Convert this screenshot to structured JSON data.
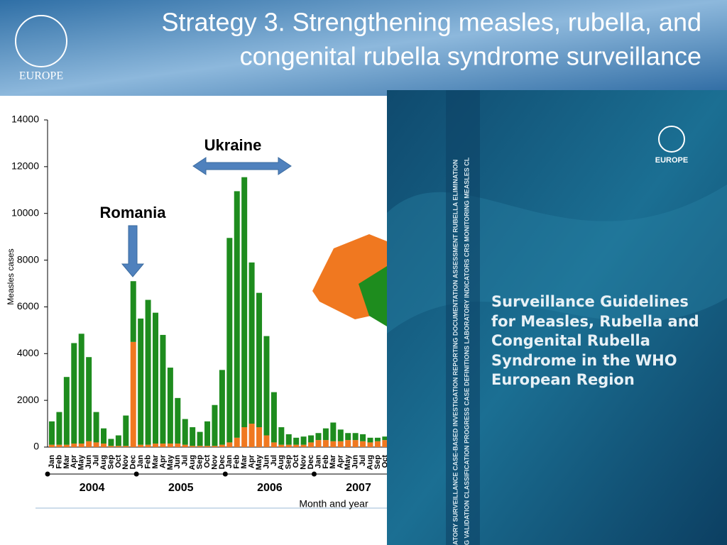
{
  "header": {
    "title_line1": "Strategy 3.  Strengthening measles, rubella, and",
    "title_line2": "congenital rubella syndrome surveillance",
    "logo_text": "EUROPE"
  },
  "chart_data": {
    "type": "stacked-bar",
    "y_label": "Measles cases",
    "x_label": "Month and year",
    "categories": [
      "Jan",
      "Feb",
      "Mar",
      "Apr",
      "May",
      "Jun",
      "Jul",
      "Aug",
      "Sep",
      "Oct",
      "Nov",
      "Dec",
      "Jan",
      "Feb",
      "Mar",
      "Apr",
      "May",
      "Jun",
      "Jul",
      "Aug",
      "Sep",
      "Oct",
      "Nov",
      "Dec",
      "Jan",
      "Feb",
      "Mar",
      "Apr",
      "May",
      "Jun",
      "Jul",
      "Aug",
      "Sep",
      "Oct",
      "Nov",
      "Dec",
      "Jan",
      "Feb",
      "Mar",
      "Apr",
      "May",
      "Jun",
      "Jul",
      "Aug",
      "Sep",
      "Oct"
    ],
    "years": [
      "2004",
      "2005",
      "2006",
      "2007"
    ],
    "series": [
      {
        "color": "#f07820",
        "values": [
          100,
          100,
          100,
          150,
          150,
          250,
          200,
          150,
          50,
          50,
          50,
          4500,
          100,
          100,
          150,
          150,
          150,
          150,
          100,
          50,
          50,
          50,
          50,
          100,
          200,
          400,
          850,
          1000,
          850,
          500,
          200,
          100,
          100,
          100,
          100,
          200,
          300,
          300,
          250,
          250,
          300,
          300,
          250,
          200,
          250,
          300
        ]
      },
      {
        "color": "#1e8c1e",
        "values": [
          1000,
          1400,
          2900,
          4300,
          4700,
          3600,
          1300,
          650,
          300,
          450,
          1300,
          2600,
          5400,
          6200,
          5600,
          4650,
          3250,
          1950,
          1100,
          800,
          600,
          1050,
          1750,
          3200,
          8750,
          10550,
          10700,
          6900,
          5750,
          4250,
          2150,
          750,
          450,
          300,
          350,
          300,
          300,
          500,
          800,
          500,
          300,
          300,
          300,
          200,
          150,
          150
        ]
      }
    ],
    "ylim": [
      0,
      14000
    ],
    "yticks": [
      0,
      2000,
      4000,
      6000,
      8000,
      10000,
      12000,
      14000
    ],
    "annotations": [
      {
        "text": "Romania"
      },
      {
        "text": "Ukraine"
      }
    ]
  },
  "cover": {
    "title": "Surveillance Guidelines for Measles, Rubella and Congenital Rubella Syndrome in the WHO European Region",
    "logo_text": "EUROPE",
    "spine_line1": "ATORY SURVEILLANCE CASE-BASED INVESTIGATION REPORTING DOCUMENTATION ASSESSMENT RUBELLA ELIMINATION",
    "spine_line2": "G VALIDATION CLASSIFICATION PROGRESS CASE DEFINITIONS LABORATORY INDICATORS CRS MONITORING MEASLES CL"
  }
}
